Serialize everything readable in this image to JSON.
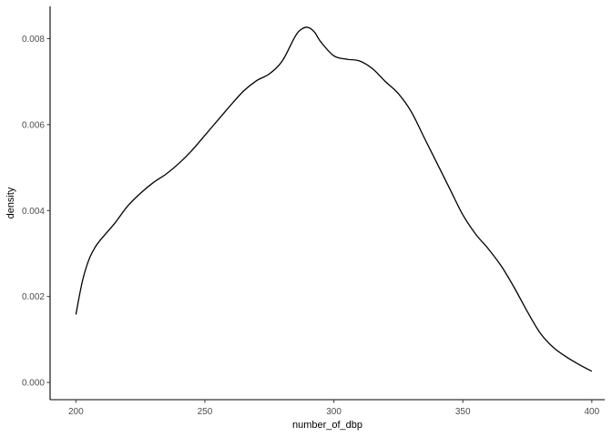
{
  "chart_data": {
    "type": "line",
    "title": "",
    "xlabel": "number_of_dbp",
    "ylabel": "density",
    "xlim": [
      190,
      405
    ],
    "ylim": [
      -0.0004,
      0.00875
    ],
    "x_ticks": [
      200,
      250,
      300,
      350,
      400
    ],
    "x_tick_labels": [
      "200",
      "250",
      "300",
      "350",
      "400"
    ],
    "y_ticks": [
      0.0,
      0.002,
      0.004,
      0.006,
      0.008
    ],
    "y_tick_labels": [
      "0.000",
      "0.002",
      "0.004",
      "0.006",
      "0.008"
    ],
    "grid": false,
    "series": [
      {
        "x": [
          200,
          202.5,
          205,
          207.5,
          210,
          215,
          220,
          225,
          230,
          235,
          240,
          245,
          250,
          255,
          260,
          265,
          270,
          275,
          280,
          285,
          287.5,
          290,
          292.5,
          295,
          300,
          305,
          310,
          315,
          320,
          325,
          330,
          335,
          340,
          345,
          350,
          355,
          360,
          365,
          370,
          375,
          380,
          385,
          390,
          395,
          400
        ],
        "y": [
          0.00158,
          0.00235,
          0.00285,
          0.00315,
          0.00335,
          0.0037,
          0.0041,
          0.0044,
          0.00465,
          0.00485,
          0.0051,
          0.0054,
          0.00575,
          0.0061,
          0.00645,
          0.00678,
          0.00702,
          0.00718,
          0.00748,
          0.00805,
          0.00822,
          0.00826,
          0.00815,
          0.00792,
          0.0076,
          0.00752,
          0.00748,
          0.0073,
          0.007,
          0.00672,
          0.0063,
          0.0057,
          0.0051,
          0.0045,
          0.0039,
          0.00345,
          0.0031,
          0.0027,
          0.0022,
          0.00165,
          0.00115,
          0.00082,
          0.0006,
          0.00042,
          0.00026
        ]
      }
    ]
  }
}
